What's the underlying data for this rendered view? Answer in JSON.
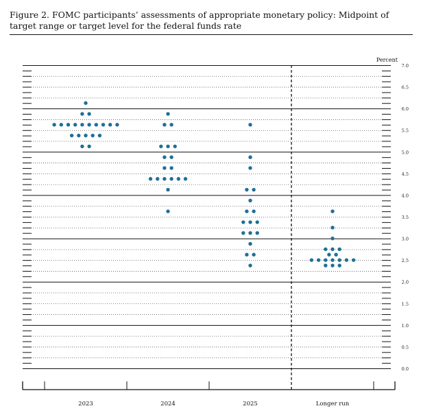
{
  "caption": {
    "figure_label": "Figure 2.",
    "text": "FOMC participants’ assessments of appropriate monetary policy: Midpoint of target range or target level for the federal funds rate"
  },
  "colors": {
    "dot": "#1f6f96",
    "axis": "#111111",
    "grid_dotted": "#555555"
  },
  "chart_data": {
    "type": "scatter",
    "title": "",
    "ylabel": "Percent",
    "xlabel": "",
    "ylim": [
      0,
      7
    ],
    "y_ticks": [
      "0.0",
      "0.5",
      "1.0",
      "1.5",
      "2.0",
      "2.5",
      "3.0",
      "3.5",
      "4.0",
      "4.5",
      "5.0",
      "5.5",
      "6.0",
      "6.5",
      "7.0"
    ],
    "categories": [
      "2023",
      "2024",
      "2025",
      "Longer run"
    ],
    "dot_plot": [
      {
        "category": "2023",
        "dots": [
          {
            "y": 6.125,
            "count": 1
          },
          {
            "y": 5.875,
            "count": 2
          },
          {
            "y": 5.625,
            "count": 10
          },
          {
            "y": 5.375,
            "count": 5
          },
          {
            "y": 5.125,
            "count": 2
          }
        ]
      },
      {
        "category": "2024",
        "dots": [
          {
            "y": 5.875,
            "count": 1
          },
          {
            "y": 5.625,
            "count": 2
          },
          {
            "y": 5.125,
            "count": 3
          },
          {
            "y": 4.875,
            "count": 2
          },
          {
            "y": 4.625,
            "count": 2
          },
          {
            "y": 4.375,
            "count": 6
          },
          {
            "y": 4.125,
            "count": 1
          },
          {
            "y": 3.625,
            "count": 1
          }
        ]
      },
      {
        "category": "2025",
        "dots": [
          {
            "y": 5.625,
            "count": 1
          },
          {
            "y": 4.875,
            "count": 1
          },
          {
            "y": 4.625,
            "count": 1
          },
          {
            "y": 4.125,
            "count": 2
          },
          {
            "y": 3.875,
            "count": 1
          },
          {
            "y": 3.625,
            "count": 2
          },
          {
            "y": 3.375,
            "count": 3
          },
          {
            "y": 3.125,
            "count": 3
          },
          {
            "y": 2.875,
            "count": 1
          },
          {
            "y": 2.625,
            "count": 2
          },
          {
            "y": 2.375,
            "count": 1
          }
        ]
      },
      {
        "category": "Longer run",
        "dots": [
          {
            "y": 3.625,
            "count": 1
          },
          {
            "y": 3.25,
            "count": 1
          },
          {
            "y": 3.0,
            "count": 1
          },
          {
            "y": 2.75,
            "count": 3
          },
          {
            "y": 2.625,
            "count": 2
          },
          {
            "y": 2.5,
            "count": 7
          },
          {
            "y": 2.375,
            "count": 3
          }
        ]
      }
    ],
    "grid": true,
    "divider_before_category": "Longer run"
  }
}
